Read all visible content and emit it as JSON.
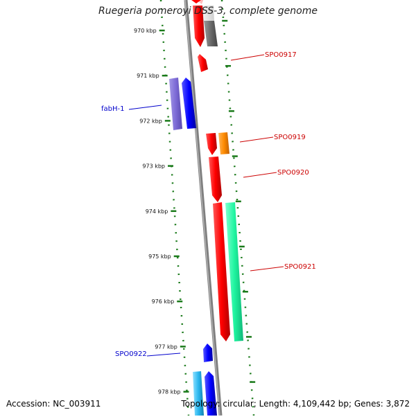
{
  "title": "Ruegeria pomeroyi DSS-3, complete genome",
  "footer": {
    "accession": "Accession: NC_003911",
    "summary": "Topology: circular; Length: 4,109,442 bp; Genes: 3,872"
  },
  "colors": {
    "backbone": "#7f7f7f",
    "ticks": "#1a7a1a",
    "label_red": "#cc0000",
    "label_blue": "#0000cc"
  },
  "ticks": [
    {
      "label": "970 kbp"
    },
    {
      "label": "971 kbp"
    },
    {
      "label": "972 kbp"
    },
    {
      "label": "973 kbp"
    },
    {
      "label": "974 kbp"
    },
    {
      "label": "975 kbp"
    },
    {
      "label": "976 kbp"
    },
    {
      "label": "977 kbp"
    },
    {
      "label": "978 kbp"
    }
  ],
  "gene_labels": [
    {
      "name": "SPO0917",
      "color": "#cc0000"
    },
    {
      "name": "fabH-1",
      "color": "#0000cc"
    },
    {
      "name": "SPO0919",
      "color": "#cc0000"
    },
    {
      "name": "SPO0920",
      "color": "#cc0000"
    },
    {
      "name": "SPO0921",
      "color": "#cc0000"
    },
    {
      "name": "SPO0922",
      "color": "#0000cc"
    }
  ]
}
